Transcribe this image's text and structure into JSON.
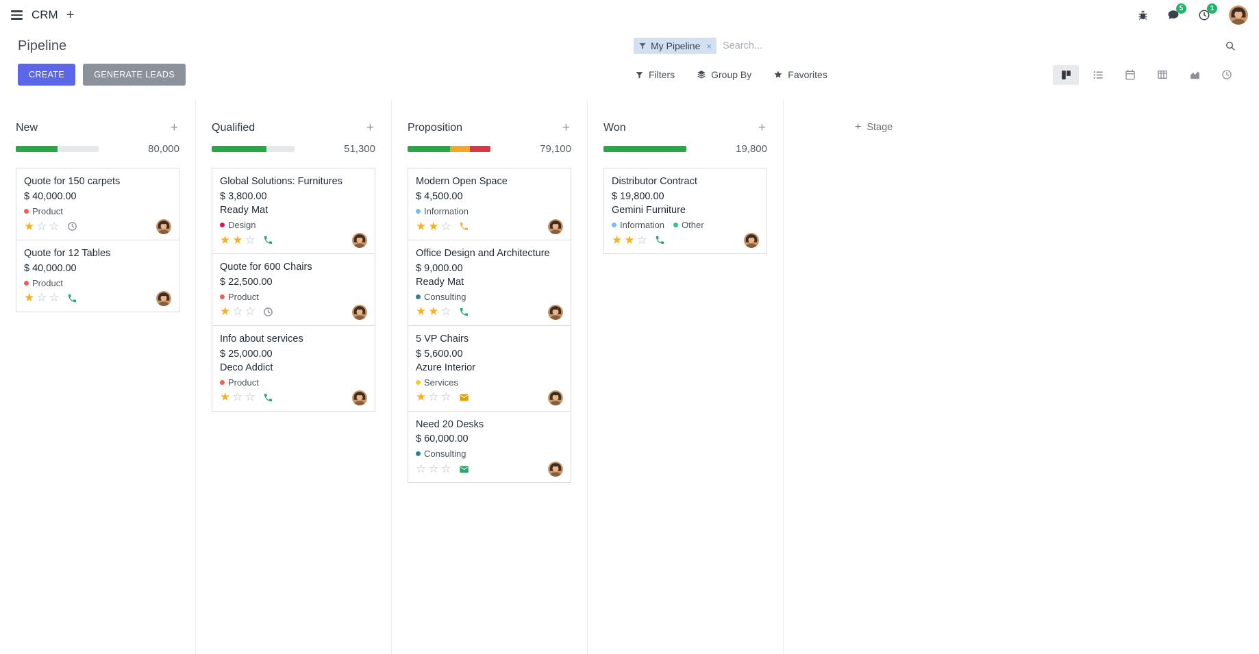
{
  "icons": {
    "plus": "+",
    "close": "×",
    "star_filled": "★",
    "star_empty": "☆"
  },
  "colors": {
    "accent": "#5c66e8",
    "secondary_button": "#8b929b",
    "badge": "#1fb36b",
    "progress_empty": "#e6e9ec"
  },
  "navbar": {
    "app_name": "CRM",
    "badges": {
      "messages": "5",
      "activities": "1"
    }
  },
  "control_panel": {
    "title": "Pipeline",
    "create_label": "CREATE",
    "generate_leads_label": "GENERATE LEADS",
    "search": {
      "facet_label": "My Pipeline",
      "placeholder": "Search..."
    },
    "filters_label": "Filters",
    "group_by_label": "Group By",
    "favorites_label": "Favorites"
  },
  "board": {
    "add_stage_label": "Stage",
    "columns": [
      {
        "name": "New",
        "total": "80,000",
        "progress": [
          {
            "color": "#28a745",
            "pct": 50
          }
        ],
        "cards": [
          {
            "title": "Quote for 150 carpets",
            "amount": "$ 40,000.00",
            "partner": null,
            "tags": [
              {
                "label": "Product",
                "color": "#f06050"
              }
            ],
            "priority": 1,
            "activity": {
              "icon": "clock",
              "color": "#8f959e"
            }
          },
          {
            "title": "Quote for 12 Tables",
            "amount": "$ 40,000.00",
            "partner": null,
            "tags": [
              {
                "label": "Product",
                "color": "#f06050"
              }
            ],
            "priority": 1,
            "activity": {
              "icon": "phone",
              "color": "#28a76c"
            }
          }
        ]
      },
      {
        "name": "Qualified",
        "total": "51,300",
        "progress": [
          {
            "color": "#28a745",
            "pct": 66
          }
        ],
        "cards": [
          {
            "title": "Global Solutions: Furnitures",
            "amount": "$ 3,800.00",
            "partner": "Ready Mat",
            "tags": [
              {
                "label": "Design",
                "color": "#d6145f"
              }
            ],
            "priority": 2,
            "activity": {
              "icon": "phone",
              "color": "#28a76c"
            }
          },
          {
            "title": "Quote for 600 Chairs",
            "amount": "$ 22,500.00",
            "partner": null,
            "tags": [
              {
                "label": "Product",
                "color": "#f06050"
              }
            ],
            "priority": 1,
            "activity": {
              "icon": "clock",
              "color": "#8f959e"
            }
          },
          {
            "title": "Info about services",
            "amount": "$ 25,000.00",
            "partner": "Deco Addict",
            "tags": [
              {
                "label": "Product",
                "color": "#f06050"
              }
            ],
            "priority": 1,
            "activity": {
              "icon": "phone",
              "color": "#28a76c"
            }
          }
        ]
      },
      {
        "name": "Proposition",
        "total": "79,100",
        "progress": [
          {
            "color": "#28a745",
            "pct": 51
          },
          {
            "color": "#f5a623",
            "pct": 24
          },
          {
            "color": "#dc3545",
            "pct": 25
          }
        ],
        "cards": [
          {
            "title": "Modern Open Space",
            "amount": "$ 4,500.00",
            "partner": null,
            "tags": [
              {
                "label": "Information",
                "color": "#6cc1ed"
              }
            ],
            "priority": 2,
            "activity": {
              "icon": "phone",
              "color": "#f0ad4e"
            }
          },
          {
            "title": "Office Design and Architecture",
            "amount": "$ 9,000.00",
            "partner": "Ready Mat",
            "tags": [
              {
                "label": "Consulting",
                "color": "#2c8397"
              }
            ],
            "priority": 2,
            "activity": {
              "icon": "phone",
              "color": "#28a76c"
            }
          },
          {
            "title": "5 VP Chairs",
            "amount": "$ 5,600.00",
            "partner": "Azure Interior",
            "tags": [
              {
                "label": "Services",
                "color": "#f7cd1f"
              }
            ],
            "priority": 1,
            "activity": {
              "icon": "envelope",
              "color": "#e0a300"
            }
          },
          {
            "title": "Need 20 Desks",
            "amount": "$ 60,000.00",
            "partner": null,
            "tags": [
              {
                "label": "Consulting",
                "color": "#2c8397"
              }
            ],
            "priority": 0,
            "activity": {
              "icon": "envelope",
              "color": "#28a76c"
            }
          }
        ]
      },
      {
        "name": "Won",
        "total": "19,800",
        "progress": [
          {
            "color": "#28a745",
            "pct": 100
          }
        ],
        "cards": [
          {
            "title": "Distributor Contract",
            "amount": "$ 19,800.00",
            "partner": "Gemini Furniture",
            "tags": [
              {
                "label": "Information",
                "color": "#6cc1ed"
              },
              {
                "label": "Other",
                "color": "#30c381"
              }
            ],
            "priority": 2,
            "activity": {
              "icon": "phone",
              "color": "#28a76c"
            }
          }
        ]
      }
    ]
  }
}
